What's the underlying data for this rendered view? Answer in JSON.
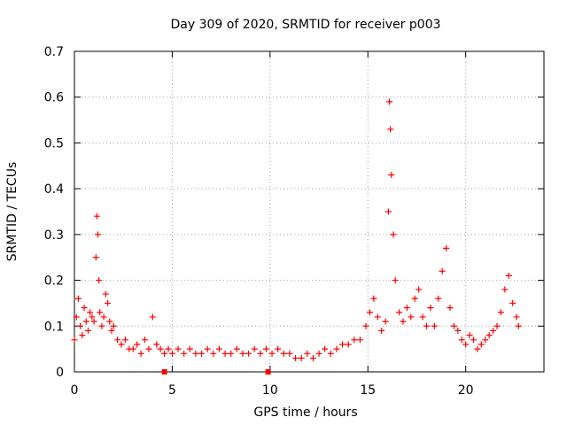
{
  "chart_data": {
    "type": "scatter",
    "title": "Day 309 of 2020, SRMTID for receiver p003",
    "xlabel": "GPS time / hours",
    "ylabel": "SRMTID / TECUs",
    "xlim": [
      0,
      24
    ],
    "ylim": [
      0,
      0.7
    ],
    "xticks": [
      0,
      5,
      10,
      15,
      20
    ],
    "xtick_labels": [
      "0",
      "5",
      "10",
      "15",
      "20"
    ],
    "yticks": [
      0,
      0.1,
      0.2,
      0.3,
      0.4,
      0.5,
      0.6,
      0.7
    ],
    "ytick_labels": [
      "0",
      "0.1",
      "0.2",
      "0.3",
      "0.4",
      "0.5",
      "0.6",
      "0.7"
    ],
    "grid": true,
    "marker": "+",
    "color": "#ff0000",
    "series": [
      {
        "name": "SRMTID",
        "x": [
          0.0,
          0.1,
          0.2,
          0.3,
          0.4,
          0.5,
          0.6,
          0.7,
          0.8,
          0.9,
          1.0,
          1.1,
          1.15,
          1.2,
          1.25,
          1.3,
          1.4,
          1.5,
          1.6,
          1.7,
          1.8,
          1.9,
          2.0,
          2.2,
          2.4,
          2.6,
          2.8,
          3.0,
          3.2,
          3.4,
          3.6,
          3.8,
          4.0,
          4.2,
          4.4,
          4.6,
          4.8,
          5.0,
          5.3,
          5.6,
          5.9,
          6.2,
          6.5,
          6.8,
          7.1,
          7.4,
          7.7,
          8.0,
          8.3,
          8.6,
          8.9,
          9.2,
          9.5,
          9.8,
          10.1,
          10.4,
          10.7,
          11.0,
          11.3,
          11.6,
          11.9,
          12.2,
          12.5,
          12.8,
          13.1,
          13.4,
          13.7,
          14.0,
          14.3,
          14.6,
          14.9,
          15.1,
          15.3,
          15.5,
          15.7,
          15.9,
          16.05,
          16.1,
          16.15,
          16.2,
          16.3,
          16.4,
          16.6,
          16.8,
          17.0,
          17.2,
          17.4,
          17.6,
          17.8,
          18.0,
          18.2,
          18.4,
          18.6,
          18.8,
          19.0,
          19.2,
          19.4,
          19.6,
          19.8,
          20.0,
          20.2,
          20.4,
          20.6,
          20.8,
          21.0,
          21.2,
          21.4,
          21.6,
          21.8,
          22.0,
          22.2,
          22.4,
          22.6,
          22.7
        ],
        "y": [
          0.07,
          0.12,
          0.16,
          0.1,
          0.08,
          0.14,
          0.11,
          0.09,
          0.13,
          0.12,
          0.11,
          0.25,
          0.34,
          0.3,
          0.2,
          0.13,
          0.1,
          0.12,
          0.17,
          0.15,
          0.11,
          0.09,
          0.1,
          0.07,
          0.06,
          0.07,
          0.05,
          0.05,
          0.06,
          0.04,
          0.07,
          0.05,
          0.12,
          0.06,
          0.05,
          0.04,
          0.05,
          0.04,
          0.05,
          0.04,
          0.05,
          0.04,
          0.04,
          0.05,
          0.04,
          0.05,
          0.04,
          0.04,
          0.05,
          0.04,
          0.04,
          0.05,
          0.04,
          0.05,
          0.04,
          0.05,
          0.04,
          0.04,
          0.03,
          0.03,
          0.04,
          0.03,
          0.04,
          0.05,
          0.04,
          0.05,
          0.06,
          0.06,
          0.07,
          0.07,
          0.1,
          0.13,
          0.16,
          0.12,
          0.09,
          0.11,
          0.35,
          0.59,
          0.53,
          0.43,
          0.3,
          0.2,
          0.13,
          0.11,
          0.14,
          0.12,
          0.16,
          0.18,
          0.12,
          0.1,
          0.14,
          0.1,
          0.16,
          0.22,
          0.27,
          0.14,
          0.1,
          0.09,
          0.07,
          0.06,
          0.08,
          0.07,
          0.05,
          0.06,
          0.07,
          0.08,
          0.09,
          0.1,
          0.13,
          0.18,
          0.21,
          0.15,
          0.12,
          0.1
        ]
      }
    ],
    "markers_on_axis": [
      {
        "x": 4.6,
        "y": 0
      },
      {
        "x": 9.9,
        "y": 0
      }
    ]
  }
}
